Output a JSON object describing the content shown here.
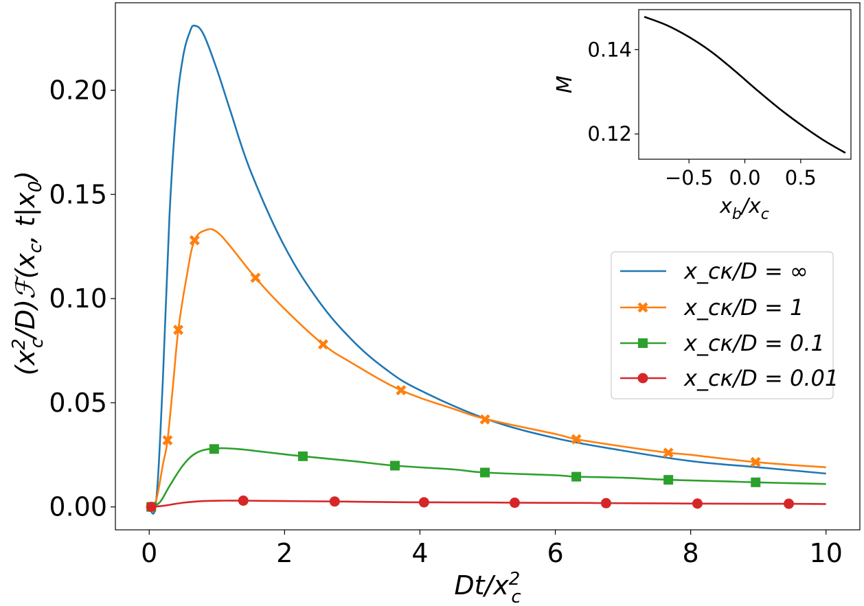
{
  "chart_data": [
    {
      "type": "line",
      "panel": "main",
      "xlabel": "Dt/x_c^2",
      "ylabel": "(x_c^2/D)F(x_c, t|x_0)",
      "xlim": [
        -0.5,
        10.5
      ],
      "ylim": [
        -0.011,
        0.242
      ],
      "xticks": [
        0,
        2,
        4,
        6,
        8,
        10
      ],
      "xtick_labels": [
        "0",
        "2",
        "4",
        "6",
        "8",
        "10"
      ],
      "yticks": [
        0.0,
        0.05,
        0.1,
        0.15,
        0.2
      ],
      "ytick_labels": [
        "0.00",
        "0.05",
        "0.10",
        "0.15",
        "0.20"
      ],
      "legend_position": "center-right",
      "series": [
        {
          "name": "x_cκ/D = ∞",
          "legend_label": "x_cκ/D = ∞",
          "color": "#1f77b4",
          "marker": "none",
          "x": [
            0,
            0.1,
            0.2,
            0.3,
            0.4,
            0.5,
            0.6,
            0.67,
            0.8,
            1.0,
            1.2,
            1.5,
            2.0,
            2.5,
            3.0,
            3.5,
            4.0,
            5.0,
            6.0,
            7.0,
            8.0,
            9.0,
            10.0
          ],
          "y": [
            0,
            0.002,
            0.06,
            0.14,
            0.19,
            0.216,
            0.228,
            0.231,
            0.227,
            0.21,
            0.19,
            0.161,
            0.125,
            0.099,
            0.08,
            0.066,
            0.056,
            0.042,
            0.033,
            0.027,
            0.022,
            0.019,
            0.016
          ]
        },
        {
          "name": "x_cκ/D = 1",
          "legend_label": "x_cκ/D = 1",
          "color": "#ff7f0e",
          "marker": "X",
          "x": [
            0,
            0.1,
            0.2,
            0.27,
            0.35,
            0.43,
            0.55,
            0.67,
            0.85,
            1.0,
            1.2,
            1.57,
            2.0,
            2.57,
            3.0,
            3.72,
            4.5,
            5.0,
            6.0,
            6.31,
            7.0,
            7.67,
            8.0,
            8.96,
            10.0
          ],
          "y": [
            0,
            0.003,
            0.02,
            0.032,
            0.058,
            0.085,
            0.11,
            0.128,
            0.133,
            0.132,
            0.125,
            0.11,
            0.095,
            0.078,
            0.069,
            0.056,
            0.047,
            0.042,
            0.035,
            0.0325,
            0.029,
            0.026,
            0.025,
            0.0215,
            0.019
          ],
          "marker_x": [
            0.03,
            0.27,
            0.43,
            0.67,
            1.57,
            2.57,
            3.72,
            4.96,
            6.31,
            7.67,
            8.96
          ],
          "marker_y": [
            0.0,
            0.032,
            0.085,
            0.128,
            0.11,
            0.078,
            0.056,
            0.042,
            0.0325,
            0.026,
            0.0215
          ]
        },
        {
          "name": "x_cκ/D = 0.1",
          "legend_label": "x_cκ/D = 0.1",
          "color": "#2ca02c",
          "marker": "s",
          "x": [
            0,
            0.15,
            0.3,
            0.5,
            0.7,
            0.96,
            1.3,
            1.8,
            2.27,
            3.0,
            3.63,
            4.5,
            4.96,
            6.0,
            6.31,
            7.0,
            7.67,
            8.5,
            8.96,
            10.0
          ],
          "y": [
            0,
            0.002,
            0.01,
            0.02,
            0.026,
            0.028,
            0.0278,
            0.026,
            0.0243,
            0.022,
            0.0198,
            0.018,
            0.0165,
            0.0152,
            0.0145,
            0.014,
            0.013,
            0.0123,
            0.0118,
            0.011
          ],
          "marker_x": [
            0.03,
            0.96,
            2.27,
            3.63,
            4.96,
            6.31,
            7.67,
            8.96
          ],
          "marker_y": [
            0.0,
            0.0278,
            0.0243,
            0.0198,
            0.0165,
            0.0145,
            0.013,
            0.0118
          ]
        },
        {
          "name": "x_cκ/D = 0.01",
          "legend_label": "x_cκ/D = 0.01",
          "color": "#d62728",
          "marker": "o",
          "x": [
            0,
            0.2,
            0.5,
            0.8,
            1.1,
            1.39,
            2.0,
            2.74,
            3.5,
            4.06,
            5.0,
            5.4,
            6.5,
            6.75,
            7.5,
            8.1,
            9.0,
            9.45,
            10.0
          ],
          "y": [
            0,
            0.0005,
            0.002,
            0.0028,
            0.003,
            0.003,
            0.0028,
            0.0026,
            0.0023,
            0.0022,
            0.0021,
            0.002,
            0.0019,
            0.0018,
            0.0017,
            0.0016,
            0.0015,
            0.0015,
            0.0014
          ],
          "marker_x": [
            0.03,
            1.39,
            2.74,
            4.06,
            5.4,
            6.75,
            8.1,
            9.45
          ],
          "marker_y": [
            0.0,
            0.003,
            0.0026,
            0.0022,
            0.002,
            0.0018,
            0.0016,
            0.0015
          ]
        }
      ]
    },
    {
      "type": "line",
      "panel": "inset",
      "xlabel": "x_b/x_c",
      "ylabel": "M",
      "xlim": [
        -0.95,
        0.95
      ],
      "ylim": [
        0.114,
        0.1495
      ],
      "xticks": [
        -0.5,
        0.0,
        0.5
      ],
      "xtick_labels": [
        "−0.5",
        "0.0",
        "0.5"
      ],
      "yticks": [
        0.12,
        0.14
      ],
      "ytick_labels": [
        "0.12",
        "0.14"
      ],
      "series": [
        {
          "name": "M",
          "color": "#000000",
          "x": [
            -0.9,
            -0.7,
            -0.5,
            -0.3,
            -0.1,
            0.1,
            0.3,
            0.5,
            0.7,
            0.9
          ],
          "y": [
            0.1478,
            0.1458,
            0.143,
            0.1395,
            0.1352,
            0.1306,
            0.1262,
            0.1222,
            0.1186,
            0.1155
          ]
        }
      ]
    }
  ]
}
